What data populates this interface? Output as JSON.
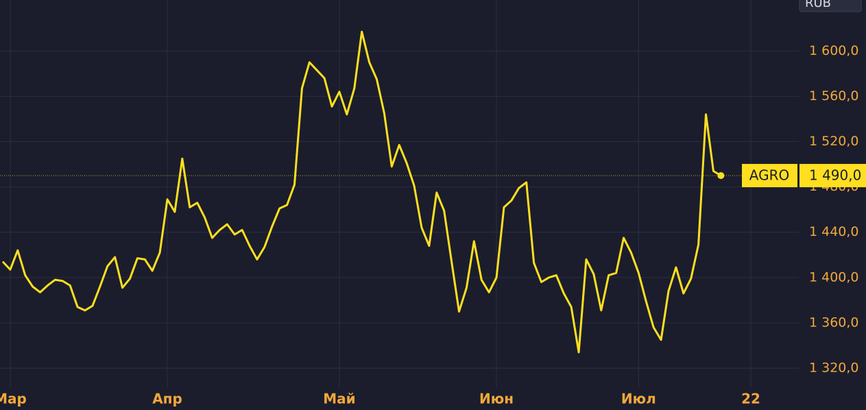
{
  "chart_data": {
    "type": "line",
    "unit_label": "RUB",
    "categories": [
      null,
      "Мар",
      null,
      null,
      null,
      null,
      null,
      null,
      null,
      null,
      null,
      null,
      null,
      null,
      null,
      null,
      null,
      null,
      null,
      null,
      null,
      null,
      "Апр",
      null,
      null,
      null,
      null,
      null,
      null,
      null,
      null,
      null,
      null,
      null,
      null,
      null,
      null,
      null,
      null,
      null,
      null,
      null,
      null,
      null,
      null,
      "Май",
      null,
      null,
      null,
      null,
      null,
      null,
      null,
      null,
      null,
      null,
      null,
      null,
      null,
      null,
      null,
      null,
      null,
      null,
      null,
      null,
      "Июн",
      null,
      null,
      null,
      null,
      null,
      null,
      null,
      null,
      null,
      null,
      null,
      null,
      null,
      null,
      null,
      null,
      null,
      null,
      "Июл",
      null,
      null,
      null,
      null,
      null,
      null,
      null,
      null,
      null,
      null,
      null,
      null,
      null,
      null,
      "22"
    ],
    "series": [
      {
        "name": "AGRO",
        "color": "#ffdf1f",
        "values": [
          1414,
          1407,
          1424,
          1402,
          1392,
          1387,
          1393,
          1398,
          1397,
          1393,
          1374,
          1371,
          1375,
          1392,
          1410,
          1418,
          1391,
          1399,
          1417,
          1416,
          1406,
          1422,
          1469,
          1458,
          1505,
          1462,
          1466,
          1453,
          1435,
          1442,
          1447,
          1438,
          1442,
          1428,
          1416,
          1427,
          1445,
          1461,
          1464,
          1482,
          1567,
          1590,
          1583,
          1576,
          1551,
          1564,
          1544,
          1567,
          1617,
          1590,
          1575,
          1545,
          1498,
          1517,
          1501,
          1481,
          1444,
          1428,
          1475,
          1459,
          1414,
          1370,
          1391,
          1432,
          1398,
          1387,
          1400,
          1462,
          1468,
          1479,
          1484,
          1413,
          1396,
          1400,
          1402,
          1386,
          1374,
          1334,
          1416,
          1403,
          1371,
          1402,
          1404,
          1435,
          1422,
          1404,
          1379,
          1356,
          1345,
          1388,
          1409,
          1386,
          1399,
          1429,
          1544,
          1494,
          1490,
          null,
          null,
          null,
          null
        ]
      }
    ],
    "price_label": {
      "name": "AGRO",
      "value": 1490,
      "label": "1 490,0"
    },
    "ylim": [
      1300,
      1645
    ],
    "yticks": [
      {
        "value": 1320,
        "label": "1 320,0"
      },
      {
        "value": 1360,
        "label": "1 360,0"
      },
      {
        "value": 1400,
        "label": "1 400,0"
      },
      {
        "value": 1440,
        "label": "1 440,0"
      },
      {
        "value": 1480,
        "label": "1 480,0"
      },
      {
        "value": 1520,
        "label": "1 520,0"
      },
      {
        "value": 1560,
        "label": "1 560,0"
      },
      {
        "value": 1600,
        "label": "1 600,0"
      }
    ],
    "grid": true
  }
}
